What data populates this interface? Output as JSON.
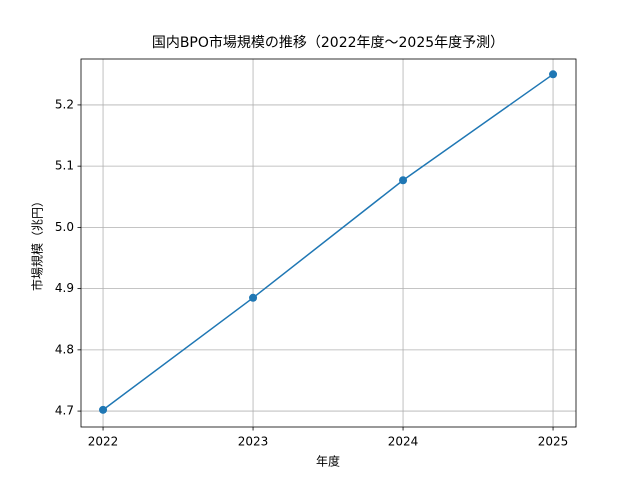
{
  "chart_data": {
    "type": "line",
    "title": "国内BPO市場規模の推移（2022年度〜2025年度予測）",
    "x_label": "年度",
    "y_label": "市場規模（兆円）",
    "x": [
      2022,
      2023,
      2024,
      2025
    ],
    "series": [
      {
        "name": "市場規模",
        "color": "#1f77b4",
        "values": [
          4.702,
          4.885,
          5.077,
          5.25
        ]
      }
    ],
    "xlim": [
      2021.853,
      2025.153
    ],
    "xticks": [
      2022,
      2023,
      2024,
      2025
    ],
    "ylim": [
      4.674,
      5.275
    ],
    "yticks": [
      {
        "value": 4.7,
        "label": "4.7"
      },
      {
        "value": 4.8,
        "label": "4.8"
      },
      {
        "value": 4.9,
        "label": "4.9"
      },
      {
        "value": 5.0,
        "label": "5.0"
      },
      {
        "value": 5.1,
        "label": "5.1"
      },
      {
        "value": 5.2,
        "label": "5.2"
      }
    ],
    "grid": true,
    "marker": "circle"
  }
}
